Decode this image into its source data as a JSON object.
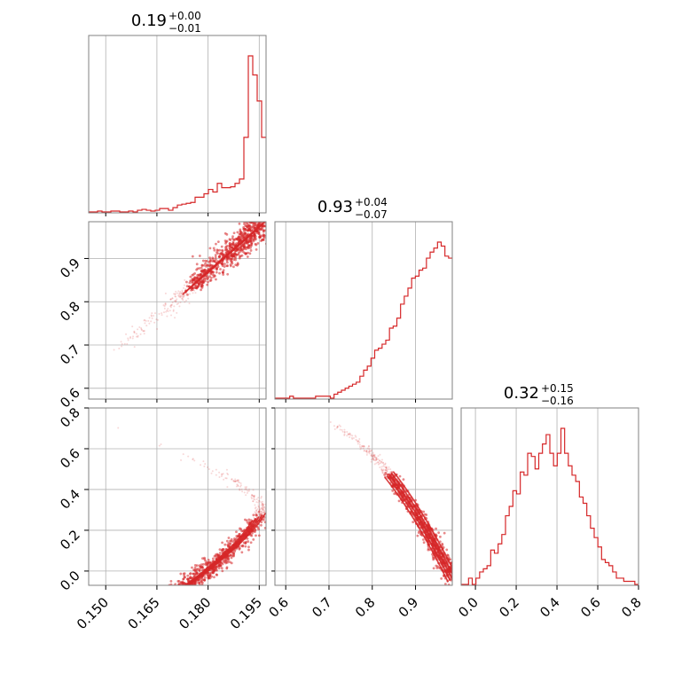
{
  "colors": {
    "line": "#d62728",
    "grid": "#b0b0b0",
    "frame": "#808080"
  },
  "params": [
    {
      "estimate": "0.19",
      "plus": "+0.00",
      "minus": "−0.01",
      "range": [
        0.145,
        0.197
      ],
      "ticks": [
        0.15,
        0.165,
        0.18,
        0.195
      ],
      "tick_labels": [
        "0.150",
        "0.165",
        "0.180",
        "0.195"
      ]
    },
    {
      "estimate": "0.93",
      "plus": "+0.04",
      "minus": "−0.07",
      "range": [
        0.575,
        0.985
      ],
      "ticks": [
        0.6,
        0.7,
        0.8,
        0.9
      ],
      "tick_labels": [
        "0.6",
        "0.7",
        "0.8",
        "0.9"
      ]
    },
    {
      "estimate": "0.32",
      "plus": "+0.15",
      "minus": "−0.16",
      "range": [
        -0.07,
        0.8
      ],
      "ticks": [
        0.0,
        0.2,
        0.4,
        0.6,
        0.8
      ],
      "tick_labels": [
        "0.0",
        "0.2",
        "0.4",
        "0.6",
        "0.8"
      ]
    }
  ],
  "chart_data": {
    "type": "corner",
    "grid": true,
    "histograms": [
      {
        "param_index": 0,
        "xmin": 0.145,
        "xmax": 0.197,
        "counts": [
          0,
          0,
          1,
          0,
          0,
          1,
          1,
          0,
          0,
          1,
          0,
          2,
          3,
          2,
          1,
          2,
          4,
          4,
          2,
          5,
          8,
          9,
          10,
          11,
          17,
          17,
          21,
          26,
          23,
          33,
          28,
          28,
          29,
          33,
          38,
          86,
          180,
          158,
          128,
          86
        ]
      },
      {
        "param_index": 1,
        "xmin": 0.575,
        "xmax": 0.985,
        "counts": [
          0,
          0,
          0,
          0,
          1,
          0,
          0,
          0,
          0,
          0,
          0,
          1,
          1,
          1,
          1,
          0,
          2,
          3,
          4,
          5,
          6,
          7,
          8,
          11,
          14,
          16,
          20,
          24,
          25,
          27,
          29,
          35,
          36,
          40,
          47,
          51,
          55,
          60,
          61,
          64,
          65,
          70,
          73,
          75,
          78,
          76,
          71,
          70
        ]
      },
      {
        "param_index": 2,
        "xmin": -0.07,
        "xmax": 0.8,
        "counts": [
          0,
          0,
          2,
          0,
          2,
          4,
          5,
          6,
          11,
          10,
          13,
          16,
          22,
          25,
          30,
          29,
          36,
          35,
          42,
          41,
          37,
          42,
          45,
          48,
          42,
          38,
          42,
          50,
          42,
          38,
          35,
          33,
          28,
          26,
          22,
          18,
          15,
          12,
          8,
          7,
          6,
          4,
          2,
          2,
          1,
          1,
          1,
          0
        ]
      }
    ],
    "pairs": [
      {
        "x_param": 0,
        "y_param": 1,
        "cloud": "monotone increasing ridge, density peaked near (0.193, 0.95)"
      },
      {
        "x_param": 0,
        "y_param": 2,
        "cloud": "curved arc, density peaked near (0.195, 0.28)"
      },
      {
        "x_param": 1,
        "y_param": 2,
        "cloud": "decreasing arc, density peaked near (0.95, 0.15)"
      }
    ]
  }
}
